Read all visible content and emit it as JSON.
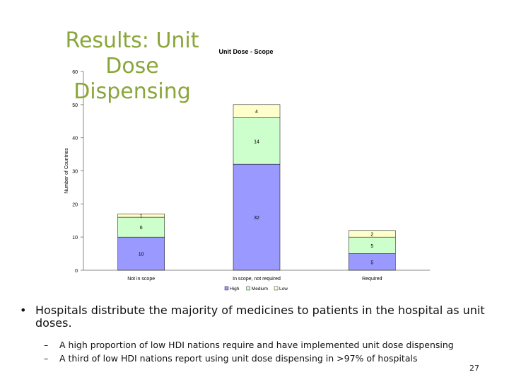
{
  "slide": {
    "title": "Results: Unit Dose Dispensing",
    "bullet": "Hospitals distribute the majority of medicines to patients in the hospital as unit doses.",
    "sub_bullets": [
      "A high proportion of low HDI nations require and have implemented unit dose dispensing",
      "A third of low HDI nations report using unit dose dispensing in >97% of hospitals"
    ],
    "page_number": "27"
  },
  "chart_data": {
    "type": "bar",
    "stacked": true,
    "title": "Unit Dose - Scope",
    "ylabel": "Number of Countries",
    "xlabel": "",
    "ylim": [
      0,
      60
    ],
    "yticks": [
      0,
      10,
      20,
      30,
      40,
      50,
      60
    ],
    "categories": [
      "Not in scope",
      "In scope, not required",
      "Required"
    ],
    "series": [
      {
        "name": "High",
        "values": [
          10,
          32,
          5
        ],
        "labels": [
          "10",
          "32",
          "5"
        ],
        "color": "#9999ff"
      },
      {
        "name": "Medium",
        "values": [
          6,
          14,
          5
        ],
        "labels": [
          "6",
          "14",
          "5"
        ],
        "color": "#ccffcc"
      },
      {
        "name": "Low",
        "values": [
          1,
          4,
          2
        ],
        "labels": [
          "1",
          "4",
          "2"
        ],
        "color": "#ffffcc"
      }
    ],
    "legend_position": "bottom",
    "grid": false
  }
}
